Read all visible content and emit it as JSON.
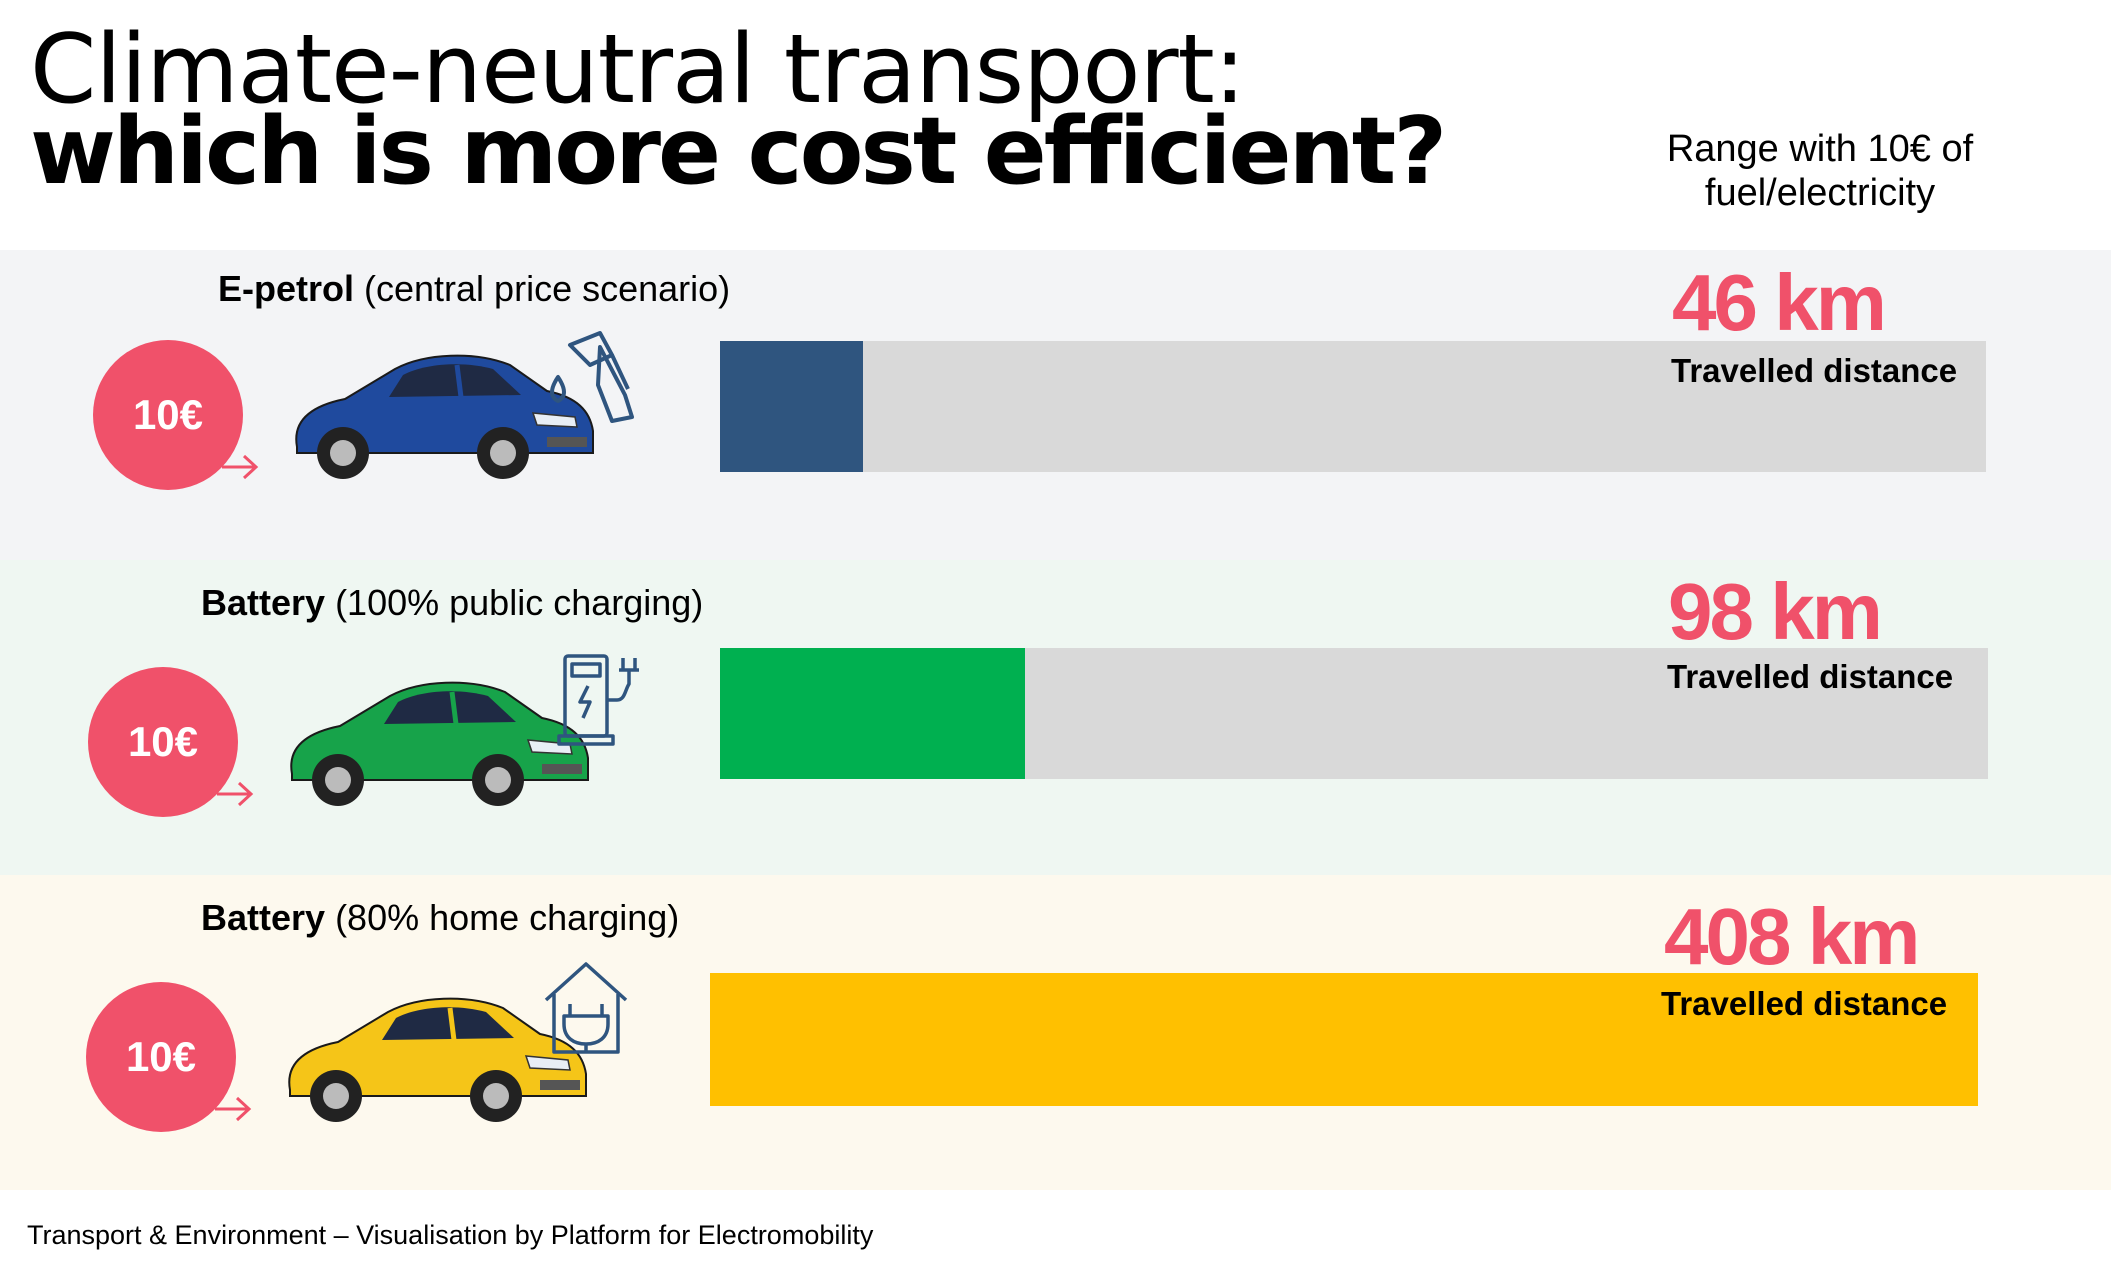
{
  "title": {
    "line1": "Climate-neutral transport:",
    "line2": "which is more cost efficient?"
  },
  "range_note": "Range with 10€ of\nfuel/electricity",
  "footer": "Transport & Environment – Visualisation by Platform for Electromobility",
  "colors": {
    "accent_red": "#f0516a",
    "track_grey": "#d9d9d9"
  },
  "icons": [
    "fuel-pump-icon",
    "ev-charger-icon",
    "home-charging-icon",
    "arrow-right-icon"
  ],
  "chart_data": {
    "type": "bar",
    "orientation": "horizontal",
    "categories": [
      "E-petrol (central price scenario)",
      "Battery (100% public charging)",
      "Battery (80% home charging)"
    ],
    "values": [
      46,
      98,
      408
    ],
    "unit": "km",
    "xlim": [
      0,
      408
    ],
    "rows": [
      {
        "label_bold": "E-petrol",
        "label_rest": " (central price scenario)",
        "price": "10€",
        "value": 46,
        "value_label": "46 km",
        "sublabel": "Travelled distance",
        "bar_color": "#2f557f",
        "band_color": "#f3f4f6",
        "car_color": "#1f4a9e",
        "icon": "fuel-pump-icon"
      },
      {
        "label_bold": "Battery",
        "label_rest": " (100% public charging)",
        "price": "10€",
        "value": 98,
        "value_label": "98 km",
        "sublabel": "Travelled distance",
        "bar_color": "#00b050",
        "band_color": "#eff7f2",
        "car_color": "#17a34a",
        "icon": "ev-charger-icon"
      },
      {
        "label_bold": "Battery",
        "label_rest": " (80% home charging)",
        "price": "10€",
        "value": 408,
        "value_label": "408 km",
        "sublabel": "Travelled distance",
        "bar_color": "#ffc000",
        "band_color": "#fdf9ee",
        "car_color": "#f5c518",
        "icon": "home-charging-icon"
      }
    ]
  }
}
